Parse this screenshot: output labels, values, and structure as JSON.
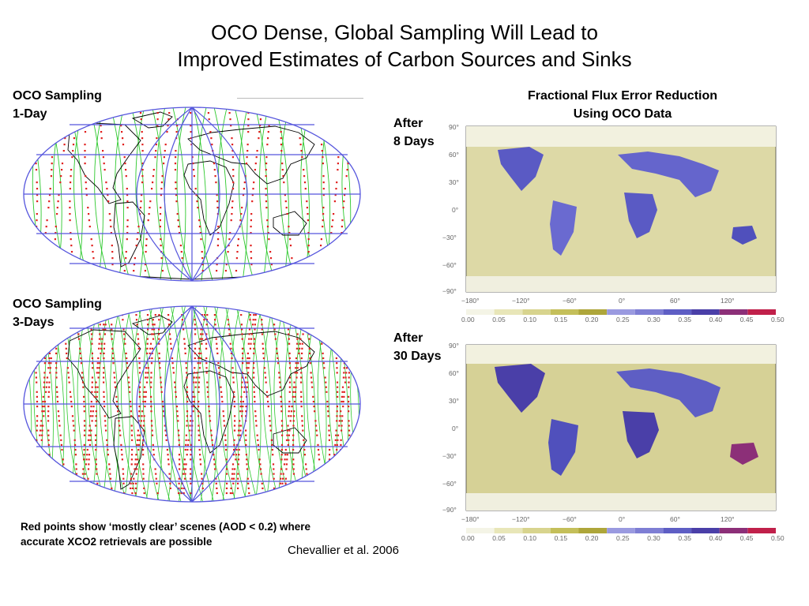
{
  "slide": {
    "title_line1": "OCO Dense, Global Sampling Will Lead to",
    "title_line2": "Improved Estimates of Carbon Sources and Sinks",
    "left_top_label_line1": "OCO Sampling",
    "left_top_label_line2": "1-Day",
    "left_bottom_label_line1": "OCO Sampling",
    "left_bottom_label_line2": "3-Days",
    "right_title_line1": "Fractional Flux Error Reduction",
    "right_title_line2": "Using OCO Data",
    "after_top_line1": "After",
    "after_top_line2": "8 Days",
    "after_bottom_line1": "After",
    "after_bottom_line2": "30 Days",
    "footnote_line1": "Red points show ‘mostly clear’ scenes (AOD < 0.2) where",
    "footnote_line2": "accurate XCO2 retrievals are possible",
    "citation": "Chevallier et al. 2006"
  },
  "flux_maps": {
    "lat_ticks": [
      "90°",
      "60°",
      "30°",
      "0°",
      "−30°",
      "−60°",
      "−90°"
    ],
    "lon_ticks": [
      "−180°",
      "−120°",
      "−60°",
      "0°",
      "60°",
      "120°"
    ],
    "colorbar_labels": [
      "0.00",
      "0.05",
      "0.10",
      "0.15",
      "0.20",
      "0.25",
      "0.30",
      "0.35",
      "0.40",
      "0.45",
      "0.50"
    ],
    "colorbar_colors": [
      "#f4f4e6",
      "#e8e6b8",
      "#d8d48e",
      "#c4bf5a",
      "#aea63a",
      "#9a9ae0",
      "#7e7ed4",
      "#5e5ec4",
      "#4a3fa8",
      "#8c2f78",
      "#c0204a"
    ]
  }
}
